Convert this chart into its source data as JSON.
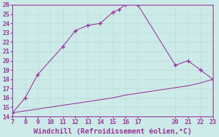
{
  "xlabel": "Windchill (Refroidissement éolien,°C)",
  "upper_x": [
    7,
    8,
    9,
    11,
    12,
    13,
    14,
    15,
    15.5,
    16,
    17,
    20,
    21,
    22,
    23
  ],
  "upper_y": [
    14.4,
    16.0,
    18.5,
    21.5,
    23.2,
    23.8,
    24.0,
    25.2,
    25.5,
    26.0,
    26.0,
    19.5,
    20.0,
    19.0,
    18.0
  ],
  "lower_x": [
    7,
    8,
    9,
    10,
    11,
    12,
    13,
    14,
    15,
    16,
    17,
    18,
    19,
    20,
    21,
    22,
    23
  ],
  "lower_y": [
    14.4,
    14.6,
    14.8,
    15.0,
    15.2,
    15.4,
    15.6,
    15.8,
    16.0,
    16.3,
    16.5,
    16.7,
    16.9,
    17.1,
    17.3,
    17.6,
    18.0
  ],
  "line_color": "#993399",
  "bg_color": "#cceae8",
  "grid_color": "#aacccc",
  "xlim": [
    7,
    23
  ],
  "ylim": [
    14,
    26
  ],
  "xticks": [
    7,
    8,
    9,
    10,
    11,
    12,
    13,
    14,
    15,
    16,
    17,
    20,
    21,
    22,
    23
  ],
  "yticks": [
    14,
    15,
    16,
    17,
    18,
    19,
    20,
    21,
    22,
    23,
    24,
    25,
    26
  ],
  "tick_fontsize": 6.5,
  "xlabel_fontsize": 7.5,
  "marker": "+",
  "marker_size": 4
}
